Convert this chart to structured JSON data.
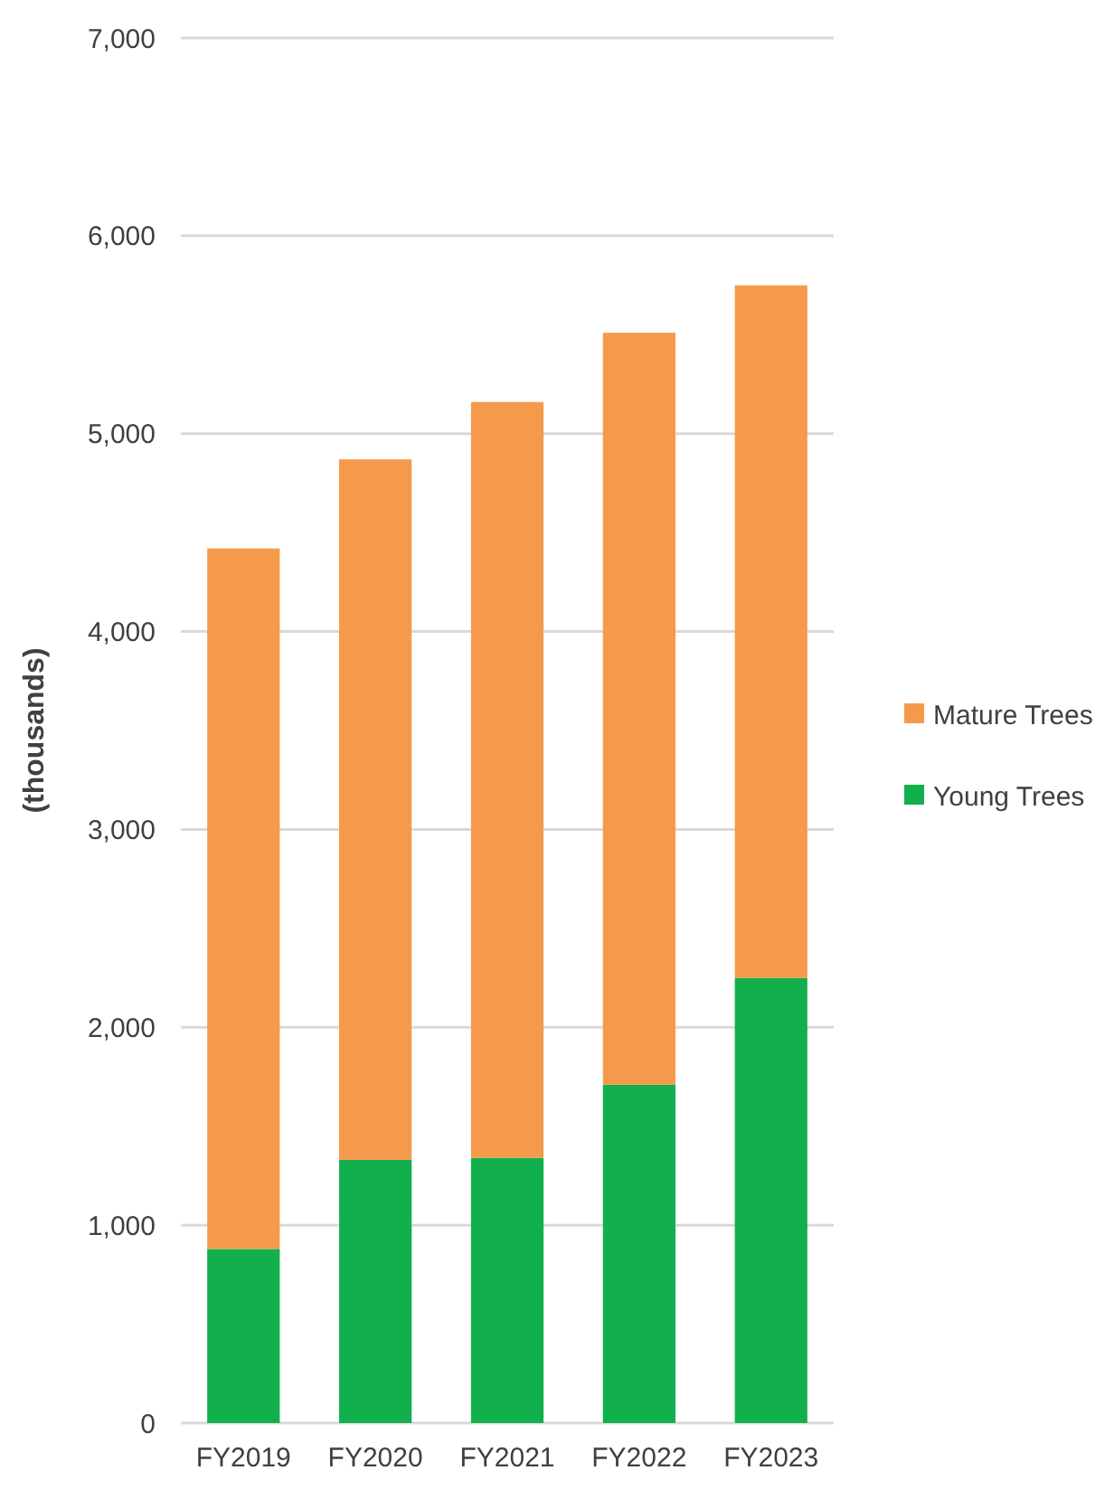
{
  "chart_data": {
    "type": "bar",
    "stacked": true,
    "ylabel": "(thousands)",
    "categories": [
      "FY2019",
      "FY2020",
      "FY2021",
      "FY2022",
      "FY2023"
    ],
    "series": [
      {
        "name": "Young Trees",
        "color": "#12b04c",
        "values": [
          880,
          1330,
          1340,
          1710,
          2250
        ]
      },
      {
        "name": "Mature Trees",
        "color": "#f59a4b",
        "values": [
          3540,
          3540,
          3820,
          3800,
          3500
        ]
      }
    ],
    "ylim": [
      0,
      7000
    ],
    "yticks": [
      {
        "value": 0,
        "label": "0"
      },
      {
        "value": 1000,
        "label": "1,000"
      },
      {
        "value": 2000,
        "label": "2,000"
      },
      {
        "value": 3000,
        "label": "3,000"
      },
      {
        "value": 4000,
        "label": "4,000"
      },
      {
        "value": 5000,
        "label": "5,000"
      },
      {
        "value": 6000,
        "label": "6,000"
      },
      {
        "value": 7000,
        "label": "7,000"
      }
    ],
    "grid": "y",
    "legend": "right"
  }
}
